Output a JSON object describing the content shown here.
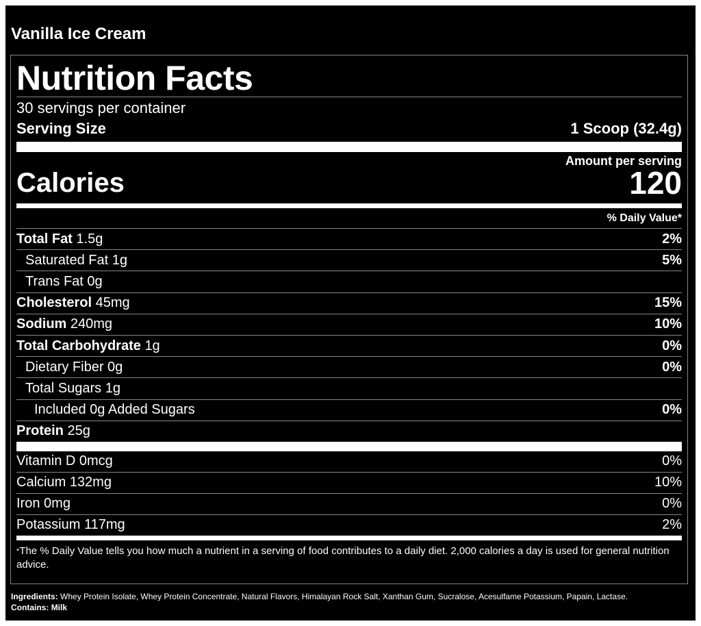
{
  "product_name": "Vanilla Ice Cream",
  "label": {
    "title": "Nutrition Facts",
    "servings": "30 servings per container",
    "serving_size": {
      "label": "Serving Size",
      "value": "1 Scoop (32.4g)"
    },
    "amount_per_serving": "Amount per serving",
    "calories": {
      "label": "Calories",
      "value": 120
    },
    "daily_value_header": "% Daily Value*",
    "nutrients": [
      {
        "name": "Total Fat",
        "amount": "1.5g",
        "dv": "2%"
      },
      {
        "name": "Saturated Fat",
        "amount": "1g",
        "dv": "5%"
      },
      {
        "name": "Trans Fat",
        "amount": "0g"
      },
      {
        "name": "Cholesterol",
        "amount": "45mg",
        "dv": "15%"
      },
      {
        "name": "Sodium",
        "amount": "240mg",
        "dv": "10%"
      },
      {
        "name": "Total Carbohydrate",
        "amount": "1g",
        "dv": "0%"
      },
      {
        "name": "Dietary Fiber",
        "amount": "0g",
        "dv": "0%"
      },
      {
        "name": "Total Sugars",
        "amount": "1g"
      },
      {
        "name": "Included 0g Added Sugars",
        "dv": "0%"
      },
      {
        "name": "Protein",
        "amount": "25g"
      }
    ],
    "vitamins": [
      {
        "name": "Vitamin D",
        "amount": "0mcg",
        "dv": "0%"
      },
      {
        "name": "Calcium",
        "amount": "132mg",
        "dv": "10%"
      },
      {
        "name": "Iron",
        "amount": "0mg",
        "dv": "0%"
      },
      {
        "name": "Potassium",
        "amount": "117mg",
        "dv": "2%"
      }
    ],
    "footnote": {
      "mark": "*",
      "text": "The % Daily Value tells you how much a nutrient in a serving of food contributes to a daily diet. 2,000 calories a day is used for general nutrition advice."
    }
  },
  "ingredients": {
    "label": "Ingredients:",
    "text": "Whey Protein Isolate, Whey Protein Concentrate, Natural Flavors, Himalayan Rock Salt, Xanthan Gum, Sucralose, Acesulfame Potassium, Papain, Lactase."
  },
  "contains": {
    "label": "Contains:",
    "text": "Milk"
  }
}
